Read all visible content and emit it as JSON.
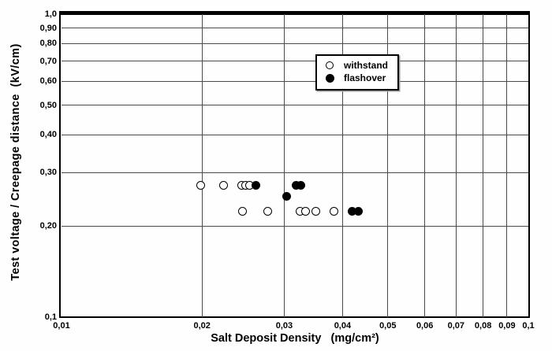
{
  "figure": {
    "background": "#ffffff",
    "frame_color": "#000000",
    "grid_color": "#4a4a4a",
    "marker_color": "#000000"
  },
  "chart_data": {
    "type": "scatter",
    "title": "",
    "xlabel": "Salt Deposit Density   (mg/cm²)",
    "ylabel": "Test voltage / Creepage distance  (kV/cm)",
    "x_scale": "log",
    "y_scale": "log",
    "xlim": [
      0.01,
      0.1
    ],
    "ylim": [
      0.1,
      1.0
    ],
    "grid": true,
    "x_ticks": [
      {
        "v": 0.01,
        "label": "0,01"
      },
      {
        "v": 0.02,
        "label": "0,02"
      },
      {
        "v": 0.03,
        "label": "0,03"
      },
      {
        "v": 0.04,
        "label": "0,04"
      },
      {
        "v": 0.05,
        "label": "0,05"
      },
      {
        "v": 0.06,
        "label": "0,06"
      },
      {
        "v": 0.07,
        "label": "0,07"
      },
      {
        "v": 0.08,
        "label": "0,08"
      },
      {
        "v": 0.09,
        "label": "0,09"
      },
      {
        "v": 0.1,
        "label": "0,1"
      }
    ],
    "y_ticks": [
      {
        "v": 1.0,
        "label": "1,0"
      },
      {
        "v": 0.9,
        "label": "0,90"
      },
      {
        "v": 0.8,
        "label": "0,80"
      },
      {
        "v": 0.7,
        "label": "0,70"
      },
      {
        "v": 0.6,
        "label": "0,60"
      },
      {
        "v": 0.5,
        "label": "0,50"
      },
      {
        "v": 0.4,
        "label": "0,40"
      },
      {
        "v": 0.3,
        "label": "0,30"
      },
      {
        "v": 0.2,
        "label": "0,20"
      },
      {
        "v": 0.1,
        "label": "0,1"
      }
    ],
    "x_gridlines": [
      0.02,
      0.03,
      0.04,
      0.05,
      0.06,
      0.07,
      0.08,
      0.09
    ],
    "y_gridlines": [
      0.2,
      0.3,
      0.4,
      0.5,
      0.6,
      0.7,
      0.8,
      0.9
    ],
    "legend": {
      "position": "upper-middle",
      "items": [
        {
          "label": "withstand",
          "marker": "open-circle-icon"
        },
        {
          "label": "flashover",
          "marker": "filled-circle-icon"
        }
      ]
    },
    "series": [
      {
        "name": "withstand",
        "marker": "open-circle",
        "points": [
          [
            0.0199,
            0.272
          ],
          [
            0.0222,
            0.272
          ],
          [
            0.0243,
            0.272
          ],
          [
            0.0248,
            0.272
          ],
          [
            0.0253,
            0.272
          ],
          [
            0.0244,
            0.223
          ],
          [
            0.0277,
            0.223
          ],
          [
            0.0324,
            0.223
          ],
          [
            0.0333,
            0.223
          ],
          [
            0.0351,
            0.223
          ],
          [
            0.0383,
            0.223
          ]
        ]
      },
      {
        "name": "flashover",
        "marker": "filled-circle",
        "points": [
          [
            0.0261,
            0.272
          ],
          [
            0.0318,
            0.272
          ],
          [
            0.0326,
            0.272
          ],
          [
            0.0303,
            0.25
          ],
          [
            0.0419,
            0.223
          ],
          [
            0.0432,
            0.223
          ]
        ]
      }
    ]
  }
}
